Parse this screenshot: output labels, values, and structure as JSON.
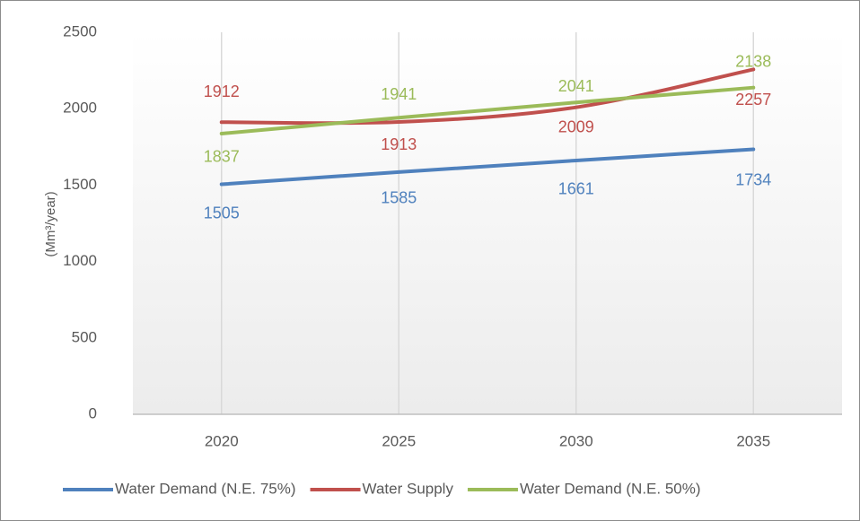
{
  "chart_data": {
    "type": "line",
    "y_label": "(Mm³/year)",
    "categories": [
      "2020",
      "2025",
      "2030",
      "2035"
    ],
    "series": [
      {
        "name": "Water Demand (N.E. 75%)",
        "color": "#4f81bd",
        "values": [
          1505,
          1585,
          1661,
          1734
        ]
      },
      {
        "name": "Water Supply",
        "color": "#c0504d",
        "values": [
          1912,
          1913,
          2009,
          2257
        ]
      },
      {
        "name": "Water Demand (N.E. 50%)",
        "color": "#9bbb59",
        "values": [
          1837,
          1941,
          2041,
          2138
        ]
      }
    ],
    "ylim": [
      0,
      2500
    ],
    "yticks": [
      0,
      500,
      1000,
      1500,
      2000,
      2500
    ],
    "grid": "x",
    "legend": "bottom"
  }
}
